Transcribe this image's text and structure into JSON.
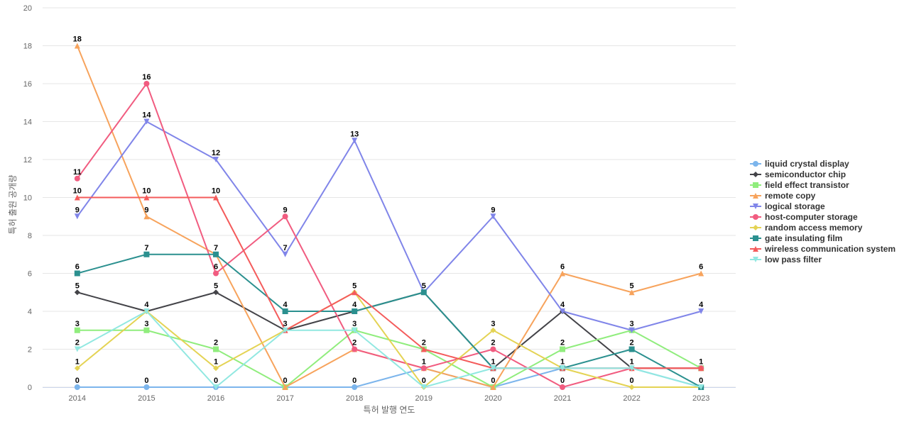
{
  "chart_data": {
    "type": "line",
    "title": "",
    "xlabel": "특허 발행 연도",
    "ylabel": "특허 출원 공개량",
    "categories": [
      "2014",
      "2015",
      "2016",
      "2017",
      "2018",
      "2019",
      "2020",
      "2021",
      "2022",
      "2023"
    ],
    "ylim": [
      0,
      20
    ],
    "yticks": [
      0,
      2,
      4,
      6,
      8,
      10,
      12,
      14,
      16,
      18,
      20
    ],
    "grid": true,
    "legend_position": "right",
    "series": [
      {
        "name": "liquid crystal display",
        "color": "#7cb5ec",
        "marker": "circle",
        "values": [
          0,
          0,
          0,
          0,
          0,
          1,
          0,
          1,
          1,
          0
        ]
      },
      {
        "name": "semiconductor chip",
        "color": "#434348",
        "marker": "diamond",
        "values": [
          5,
          4,
          5,
          3,
          4,
          5,
          1,
          4,
          1,
          1
        ]
      },
      {
        "name": "field effect transistor",
        "color": "#90ed7d",
        "marker": "square",
        "values": [
          3,
          3,
          2,
          0,
          3,
          2,
          0,
          2,
          3,
          1
        ]
      },
      {
        "name": "remote copy",
        "color": "#f7a35c",
        "marker": "triangle",
        "values": [
          18,
          9,
          7,
          0,
          2,
          1,
          0,
          6,
          5,
          6
        ]
      },
      {
        "name": "logical storage",
        "color": "#8085e9",
        "marker": "triangle-down",
        "values": [
          9,
          14,
          12,
          7,
          13,
          5,
          9,
          4,
          3,
          4
        ]
      },
      {
        "name": "host-computer storage",
        "color": "#f15c80",
        "marker": "circle",
        "values": [
          11,
          16,
          6,
          9,
          2,
          1,
          2,
          0,
          1,
          1
        ]
      },
      {
        "name": "random access memory",
        "color": "#e4d354",
        "marker": "diamond",
        "values": [
          1,
          4,
          1,
          3,
          5,
          0,
          3,
          1,
          0,
          0
        ]
      },
      {
        "name": "gate insulating film",
        "color": "#2b908f",
        "marker": "square",
        "values": [
          6,
          7,
          7,
          4,
          4,
          5,
          1,
          1,
          2,
          0
        ]
      },
      {
        "name": "wireless communication system",
        "color": "#f45b5b",
        "marker": "triangle",
        "values": [
          10,
          10,
          10,
          3,
          5,
          2,
          1,
          1,
          1,
          1
        ]
      },
      {
        "name": "low pass filter",
        "color": "#91e8e1",
        "marker": "triangle-down",
        "values": [
          2,
          4,
          0,
          3,
          3,
          0,
          1,
          1,
          1,
          0
        ]
      }
    ],
    "data_labels": [
      {
        "x": "2014",
        "labels": [
          "18",
          "11",
          "10",
          "9",
          "6",
          "5",
          "3",
          "2",
          "1",
          "0"
        ]
      },
      {
        "x": "2015",
        "labels": [
          "16",
          "14",
          "10",
          "9",
          "7",
          "4",
          "3",
          "0"
        ]
      },
      {
        "x": "2016",
        "labels": [
          "12",
          "10",
          "7",
          "6",
          "5",
          "2",
          "1",
          "0"
        ]
      },
      {
        "x": "2017",
        "labels": [
          "9",
          "7",
          "4",
          "3",
          "0"
        ]
      },
      {
        "x": "2018",
        "labels": [
          "13",
          "5",
          "4",
          "3",
          "2",
          "0"
        ]
      },
      {
        "x": "2019",
        "labels": [
          "5",
          "2",
          "1",
          "0"
        ]
      },
      {
        "x": "2020",
        "labels": [
          "9",
          "3",
          "2",
          "1",
          "0"
        ]
      },
      {
        "x": "2021",
        "labels": [
          "6",
          "4",
          "2",
          "1",
          "0"
        ]
      },
      {
        "x": "2022",
        "labels": [
          "5",
          "3",
          "2",
          "1",
          "0"
        ]
      },
      {
        "x": "2023",
        "labels": [
          "6",
          "4",
          "1",
          "0"
        ]
      }
    ]
  }
}
